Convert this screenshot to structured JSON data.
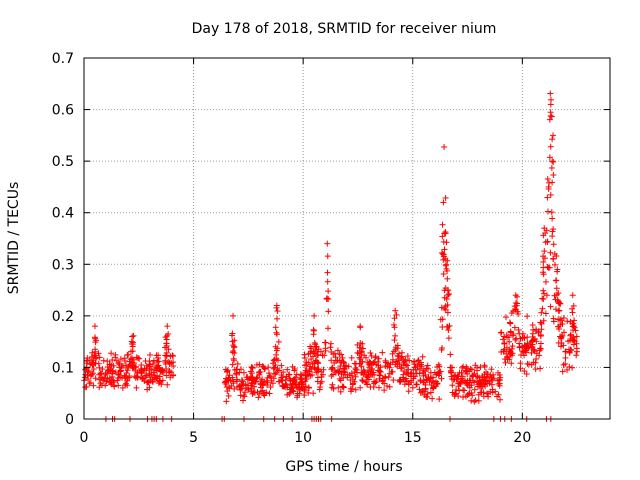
{
  "chart_data": {
    "type": "scatter",
    "title": "Day 178 of 2018, SRMTID for receiver nium",
    "xlabel": "GPS time / hours",
    "ylabel": "SRMTID / TECUs",
    "xlim": [
      0,
      24
    ],
    "ylim": [
      0,
      0.7
    ],
    "x_ticks": [
      0,
      5,
      10,
      15,
      20
    ],
    "x_tick_labels": [
      "0",
      "5",
      "10",
      "15",
      "20"
    ],
    "y_ticks": [
      0,
      0.1,
      0.2,
      0.3,
      0.4,
      0.5,
      0.6,
      0.7
    ],
    "y_tick_labels": [
      "0",
      "0.1",
      "0.2",
      "0.3",
      "0.4",
      "0.5",
      "0.6",
      "0.7"
    ],
    "grid": true,
    "marker": "+",
    "series_color": "#ff0000",
    "segments": [
      {
        "t0": 0.0,
        "t1": 4.1,
        "base": 0.09,
        "spread": 0.04
      },
      {
        "t0": 6.4,
        "t1": 10.0,
        "base": 0.07,
        "spread": 0.04
      },
      {
        "t0": 10.0,
        "t1": 15.5,
        "base": 0.09,
        "spread": 0.045
      },
      {
        "t0": 15.5,
        "t1": 19.0,
        "base": 0.07,
        "spread": 0.04
      },
      {
        "t0": 19.0,
        "t1": 22.5,
        "base": 0.14,
        "spread": 0.06
      }
    ],
    "peaks": [
      {
        "x": 0.5,
        "y": 0.18
      },
      {
        "x": 2.2,
        "y": 0.16
      },
      {
        "x": 3.8,
        "y": 0.18
      },
      {
        "x": 6.8,
        "y": 0.2
      },
      {
        "x": 8.8,
        "y": 0.22
      },
      {
        "x": 10.5,
        "y": 0.2
      },
      {
        "x": 11.1,
        "y": 0.34
      },
      {
        "x": 12.6,
        "y": 0.18
      },
      {
        "x": 14.2,
        "y": 0.21
      },
      {
        "x": 16.4,
        "y": 0.42
      },
      {
        "x": 16.5,
        "y": 0.36
      },
      {
        "x": 16.6,
        "y": 0.25
      },
      {
        "x": 19.7,
        "y": 0.24
      },
      {
        "x": 21.0,
        "y": 0.37
      },
      {
        "x": 21.2,
        "y": 0.45
      },
      {
        "x": 21.3,
        "y": 0.61
      },
      {
        "x": 21.4,
        "y": 0.55
      },
      {
        "x": 21.6,
        "y": 0.29
      },
      {
        "x": 22.3,
        "y": 0.24
      }
    ],
    "zero_points_x": [
      1.0,
      1.3,
      1.4,
      2.1,
      2.9,
      3.1,
      3.2,
      3.3,
      3.6,
      4.0,
      6.3,
      6.4,
      7.3,
      8.2,
      8.7,
      9.1,
      9.5,
      10.4,
      10.5,
      10.6,
      10.7,
      10.8,
      11.3,
      16.7,
      18.7,
      19.0,
      19.2,
      19.5,
      20.2,
      21.1,
      21.3
    ]
  }
}
